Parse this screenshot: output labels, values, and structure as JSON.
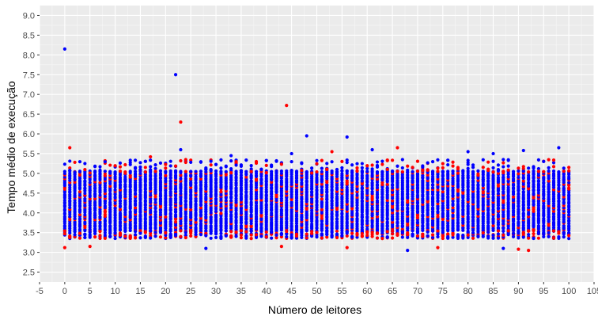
{
  "chart_data": {
    "type": "scatter",
    "xlabel": "Número de leitores",
    "ylabel": "Tempo médio de execução",
    "xlim": [
      -5,
      105
    ],
    "ylim": [
      2.25,
      9.25
    ],
    "x_ticks": [
      -5,
      0,
      5,
      10,
      15,
      20,
      25,
      30,
      35,
      40,
      45,
      50,
      55,
      60,
      65,
      70,
      75,
      80,
      85,
      90,
      95,
      100,
      105
    ],
    "y_ticks": [
      2.5,
      3.0,
      3.5,
      4.0,
      4.5,
      5.0,
      5.5,
      6.0,
      6.5,
      7.0,
      7.5,
      8.0,
      8.5,
      9.0
    ],
    "x_tick_labels": [
      "-5",
      "0",
      "5",
      "10",
      "15",
      "20",
      "25",
      "30",
      "35",
      "40",
      "45",
      "50",
      "55",
      "60",
      "65",
      "70",
      "75",
      "80",
      "85",
      "90",
      "95",
      "100",
      "105"
    ],
    "y_tick_labels": [
      "2.5",
      "3.0",
      "3.5",
      "4.0",
      "4.5",
      "5.0",
      "5.5",
      "6.0",
      "6.5",
      "7.0",
      "7.5",
      "8.0",
      "8.5",
      "9.0"
    ],
    "grid": true,
    "legend": "none",
    "colors": {
      "panel": "#ebebeb",
      "grid_major": "#ffffff",
      "series_a": "#0000ff",
      "series_b": "#ff0000"
    },
    "x_range_points": [
      0,
      100
    ],
    "series": [
      {
        "color": "#0000ff",
        "dense_band": [
          3.55,
          5.05
        ],
        "outliers": [
          {
            "x": 0,
            "y": 8.15
          },
          {
            "x": 22,
            "y": 7.5
          },
          {
            "x": 48,
            "y": 5.95
          },
          {
            "x": 56,
            "y": 5.92
          },
          {
            "x": 61,
            "y": 5.6
          },
          {
            "x": 98,
            "y": 5.65
          },
          {
            "x": 23,
            "y": 5.6
          },
          {
            "x": 45,
            "y": 5.5
          },
          {
            "x": 91,
            "y": 5.58
          },
          {
            "x": 80,
            "y": 5.55
          },
          {
            "x": 33,
            "y": 5.45
          },
          {
            "x": 85,
            "y": 5.5
          },
          {
            "x": 68,
            "y": 3.05
          },
          {
            "x": 28,
            "y": 3.1
          },
          {
            "x": 87,
            "y": 3.1
          }
        ]
      },
      {
        "color": "#ff0000",
        "dense_band": [
          3.55,
          5.05
        ],
        "outliers": [
          {
            "x": 44,
            "y": 6.72
          },
          {
            "x": 23,
            "y": 6.3
          },
          {
            "x": 1,
            "y": 5.65
          },
          {
            "x": 66,
            "y": 5.65
          },
          {
            "x": 53,
            "y": 5.55
          },
          {
            "x": 0,
            "y": 3.12
          },
          {
            "x": 5,
            "y": 3.15
          },
          {
            "x": 43,
            "y": 3.15
          },
          {
            "x": 56,
            "y": 3.12
          },
          {
            "x": 90,
            "y": 3.08
          },
          {
            "x": 92,
            "y": 3.05
          },
          {
            "x": 74,
            "y": 3.12
          },
          {
            "x": 17,
            "y": 5.42
          },
          {
            "x": 24,
            "y": 5.35
          },
          {
            "x": 38,
            "y": 5.3
          }
        ]
      }
    ]
  }
}
